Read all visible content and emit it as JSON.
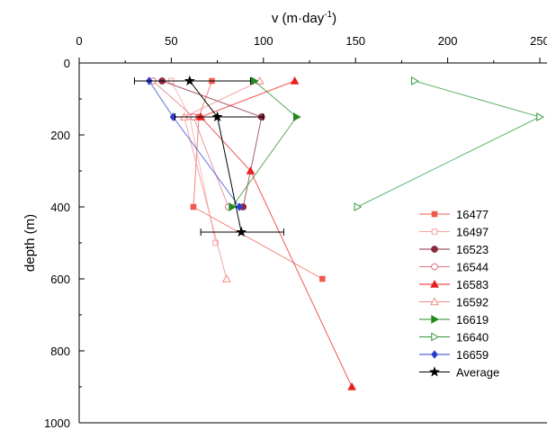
{
  "chart_data": {
    "type": "scatter",
    "xlabel_main": "v (m·day",
    "xlabel_sup": "-1",
    "xlabel_end": ")",
    "ylabel": "depth (m)",
    "xlim": [
      0,
      250
    ],
    "ylim": [
      1000,
      0
    ],
    "x_ticks": [
      0,
      50,
      100,
      150,
      200,
      250
    ],
    "x_tick_labels": [
      "0",
      "50",
      "100",
      "150",
      "200",
      "250"
    ],
    "y_ticks": [
      0,
      200,
      400,
      600,
      800,
      1000
    ],
    "y_tick_labels": [
      "0",
      "200",
      "400",
      "600",
      "800",
      "1000"
    ],
    "x_axis_position": "top",
    "grid": false,
    "legend_position": "right",
    "series": [
      {
        "name": "16477",
        "color": "#f05a4f",
        "marker": "square",
        "filled": true,
        "points": [
          [
            72,
            50
          ],
          [
            65,
            150
          ],
          [
            62,
            400
          ],
          [
            132,
            600
          ]
        ]
      },
      {
        "name": "16497",
        "color": "#f5a3a0",
        "marker": "square",
        "filled": false,
        "points": [
          [
            50,
            50
          ],
          [
            60,
            150
          ],
          [
            74,
            500
          ]
        ]
      },
      {
        "name": "16523",
        "color": "#8b2a3f",
        "marker": "circle",
        "filled": true,
        "points": [
          [
            45,
            50
          ],
          [
            99,
            150
          ],
          [
            89,
            400
          ]
        ]
      },
      {
        "name": "16544",
        "color": "#e07080",
        "marker": "circle",
        "filled": false,
        "points": [
          [
            40,
            50
          ],
          [
            62,
            150
          ],
          [
            81,
            400
          ]
        ]
      },
      {
        "name": "16583",
        "color": "#e8201f",
        "marker": "triangle-up",
        "filled": true,
        "points": [
          [
            117,
            50
          ],
          [
            66,
            150
          ],
          [
            93,
            300
          ],
          [
            148,
            900
          ]
        ]
      },
      {
        "name": "16592",
        "color": "#f08a86",
        "marker": "triangle-up",
        "filled": false,
        "points": [
          [
            98,
            50
          ],
          [
            57,
            150
          ],
          [
            80,
            600
          ]
        ]
      },
      {
        "name": "16619",
        "color": "#1f8a1f",
        "marker": "triangle-right",
        "filled": true,
        "points": [
          [
            95,
            50
          ],
          [
            118,
            150
          ],
          [
            83,
            400
          ]
        ]
      },
      {
        "name": "16640",
        "color": "#2e9a3a",
        "marker": "triangle-right",
        "filled": false,
        "points": [
          [
            182,
            50
          ],
          [
            250,
            150
          ],
          [
            151,
            400
          ]
        ]
      },
      {
        "name": "16659",
        "color": "#2a3fd0",
        "marker": "diamond",
        "filled": true,
        "points": [
          [
            38,
            50
          ],
          [
            51,
            150
          ],
          [
            87,
            400
          ]
        ]
      },
      {
        "name": "Average",
        "color": "#000000",
        "marker": "star",
        "filled": true,
        "points": [
          [
            60,
            50
          ],
          [
            75,
            150
          ],
          [
            88,
            470
          ]
        ],
        "error_x": [
          [
            30,
            93
          ],
          [
            52,
            100
          ],
          [
            66,
            111
          ]
        ]
      }
    ]
  }
}
